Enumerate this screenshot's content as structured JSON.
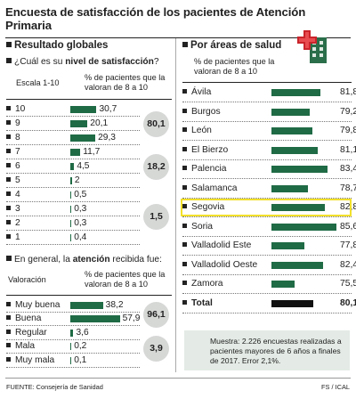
{
  "title": "Encuesta de satisfacción de los pacientes de Atención Primaria",
  "left": {
    "heading": "Resultado globales",
    "q1": {
      "pre": "¿Cuál es su ",
      "bold": "nivel de satisfacción",
      "post": "?"
    },
    "q1_col1": "Escala 1-10",
    "q1_col2": "% de pacientes que la valoran de 8 a 10",
    "q2": {
      "pre": "En general, la ",
      "bold": "atención",
      "post": " recibida fue:"
    },
    "q2_col1": "Valoración",
    "q2_col2": "% de pacientes que la valoran de 8 a 10",
    "groups1": [
      "80,1",
      "18,2",
      "1,5"
    ],
    "groups2": [
      "96,1",
      "3,9"
    ]
  },
  "right": {
    "heading": "Por áreas de salud",
    "col": "% de pacientes que la valoran de 8 a 10",
    "highlight": "Segovia",
    "note": "Muestra: 2.226 encuestas realizadas a pacientes mayores de 6 años a finales de 2017. Error 2,1%."
  },
  "footer": {
    "source": "FUENTE: Consejería de Sanidad",
    "credit": "FS / ICAL"
  },
  "colors": {
    "bar": "#1f6b45",
    "total_bar": "#111111",
    "highlight": "#f2e02a",
    "note_bg": "#e4ebe6"
  },
  "chart_data": [
    {
      "type": "bar",
      "title": "¿Cuál es su nivel de satisfacción?",
      "xlabel": "Escala 1-10",
      "ylabel": "% de pacientes que la valoran de 8 a 10",
      "categories": [
        "10",
        "9",
        "8",
        "7",
        "6",
        "5",
        "4",
        "3",
        "2",
        "1"
      ],
      "values": [
        30.7,
        20.1,
        29.3,
        11.7,
        4.5,
        2,
        0.5,
        0.3,
        0.3,
        0.4
      ],
      "labels": [
        "30,7",
        "20,1",
        "29,3",
        "11,7",
        "4,5",
        "2",
        "0,5",
        "0,3",
        "0,3",
        "0,4"
      ]
    },
    {
      "type": "bar",
      "title": "En general, la atención recibida fue:",
      "xlabel": "Valoración",
      "ylabel": "% de pacientes que la valoran de 8 a 10",
      "categories": [
        "Muy buena",
        "Buena",
        "Regular",
        "Mala",
        "Muy mala"
      ],
      "values": [
        38.2,
        57.9,
        3.6,
        0.2,
        0.1
      ],
      "labels": [
        "38,2",
        "57,9",
        "3,6",
        "0,2",
        "0,1"
      ]
    },
    {
      "type": "bar",
      "title": "Por áreas de salud",
      "ylabel": "% de pacientes que la valoran de 8 a 10",
      "categories": [
        "Ávila",
        "Burgos",
        "León",
        "El Bierzo",
        "Palencia",
        "Salamanca",
        "Segovia",
        "Soria",
        "Valladolid Este",
        "Valladolid Oeste",
        "Zamora",
        "Total"
      ],
      "values": [
        81.8,
        79.2,
        79.8,
        81.1,
        83.4,
        78.7,
        82.8,
        85.6,
        77.8,
        82.4,
        75.5,
        80.1
      ],
      "labels": [
        "81,8",
        "79,2",
        "79,8",
        "81,1",
        "83,4",
        "78,7",
        "82,8",
        "85,6",
        "77,8",
        "82,4",
        "75,5",
        "80,1"
      ]
    }
  ]
}
